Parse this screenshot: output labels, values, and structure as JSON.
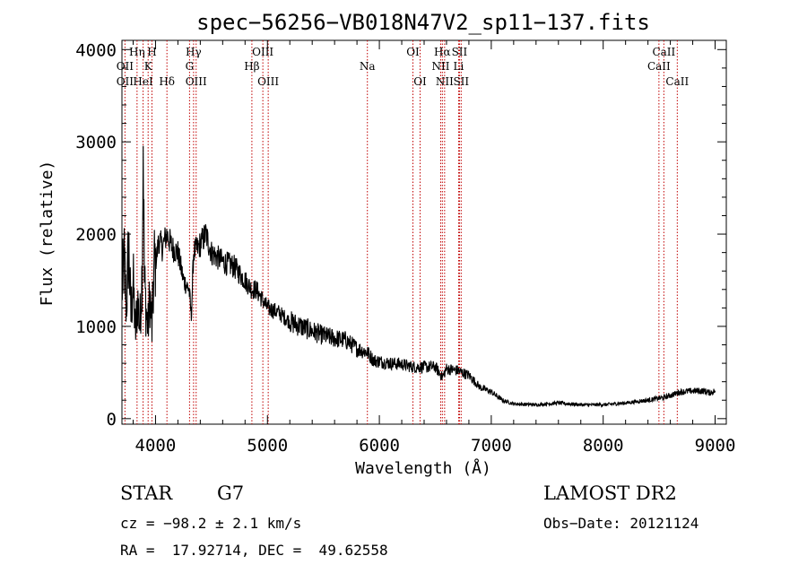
{
  "chart_data": {
    "type": "line",
    "title": "spec−56256−VB018N47V2_sp11−137.fits",
    "xlabel": "Wavelength (Å)",
    "ylabel": "Flux (relative)",
    "xlim": [
      3700,
      9100
    ],
    "ylim": [
      -60,
      4100
    ],
    "xticks": [
      4000,
      5000,
      6000,
      7000,
      8000,
      9000
    ],
    "yticks": [
      0,
      1000,
      2000,
      3000,
      4000
    ],
    "grid": false,
    "series": [
      {
        "name": "spectrum",
        "x": [
          3700,
          3720,
          3740,
          3760,
          3780,
          3800,
          3820,
          3840,
          3860,
          3880,
          3890,
          3900,
          3920,
          3934,
          3950,
          3968,
          3990,
          4010,
          4030,
          4060,
          4100,
          4150,
          4200,
          4250,
          4300,
          4320,
          4340,
          4380,
          4450,
          4500,
          4600,
          4700,
          4800,
          4861,
          4900,
          5000,
          5100,
          5200,
          5300,
          5400,
          5500,
          5600,
          5700,
          5800,
          5890,
          5950,
          6000,
          6100,
          6200,
          6300,
          6400,
          6500,
          6563,
          6600,
          6700,
          6800,
          6900,
          7000,
          7100,
          7200,
          7400,
          7600,
          7800,
          8000,
          8200,
          8400,
          8542,
          8600,
          8662,
          8700,
          8800,
          8900,
          8950,
          9000
        ],
        "values": [
          1400,
          1700,
          1200,
          1900,
          1100,
          1500,
          900,
          1300,
          1000,
          1600,
          3100,
          1500,
          1100,
          1000,
          1350,
          950,
          1700,
          1750,
          1950,
          1850,
          2000,
          1850,
          1800,
          1500,
          1400,
          1100,
          1800,
          1850,
          2000,
          1800,
          1700,
          1650,
          1500,
          1400,
          1400,
          1200,
          1150,
          1050,
          1000,
          950,
          900,
          870,
          850,
          760,
          720,
          630,
          620,
          600,
          590,
          560,
          560,
          560,
          450,
          540,
          520,
          470,
          340,
          290,
          200,
          160,
          150,
          170,
          150,
          150,
          170,
          200,
          230,
          250,
          280,
          290,
          300,
          300,
          280,
          300
        ]
      }
    ],
    "lines": [
      {
        "wl": 3727,
        "labels": [
          {
            "text": "OII",
            "row": 2
          },
          {
            "text": "OII",
            "row": 3
          }
        ]
      },
      {
        "wl": 3835,
        "labels": [
          {
            "text": "Hη",
            "row": 1
          }
        ]
      },
      {
        "wl": 3889,
        "labels": [
          {
            "text": "HeI",
            "row": 3
          }
        ]
      },
      {
        "wl": 3934,
        "labels": [
          {
            "text": "K",
            "row": 2
          }
        ]
      },
      {
        "wl": 3968,
        "labels": [
          {
            "text": "H",
            "row": 1
          }
        ]
      },
      {
        "wl": 4102,
        "labels": [
          {
            "text": "Hδ",
            "row": 3
          }
        ]
      },
      {
        "wl": 4304,
        "labels": [
          {
            "text": "G",
            "row": 2
          }
        ]
      },
      {
        "wl": 4340,
        "labels": [
          {
            "text": "Hγ",
            "row": 1
          }
        ]
      },
      {
        "wl": 4363,
        "labels": [
          {
            "text": "OIII",
            "row": 3
          }
        ]
      },
      {
        "wl": 4861,
        "labels": [
          {
            "text": "Hβ",
            "row": 2
          }
        ]
      },
      {
        "wl": 4959,
        "labels": [
          {
            "text": "OIII",
            "row": 1
          }
        ]
      },
      {
        "wl": 5007,
        "labels": [
          {
            "text": "OIII",
            "row": 3
          }
        ]
      },
      {
        "wl": 5893,
        "labels": [
          {
            "text": "Na",
            "row": 2
          }
        ]
      },
      {
        "wl": 6300,
        "labels": [
          {
            "text": "OI",
            "row": 1
          }
        ]
      },
      {
        "wl": 6364,
        "labels": [
          {
            "text": "OI",
            "row": 3
          }
        ]
      },
      {
        "wl": 6548,
        "labels": [
          {
            "text": "NII",
            "row": 2
          }
        ]
      },
      {
        "wl": 6563,
        "labels": [
          {
            "text": "Hα",
            "row": 1
          }
        ]
      },
      {
        "wl": 6583,
        "labels": [
          {
            "text": "NII",
            "row": 3
          }
        ]
      },
      {
        "wl": 6708,
        "labels": [
          {
            "text": "Li",
            "row": 2
          }
        ]
      },
      {
        "wl": 6716,
        "labels": [
          {
            "text": "SII",
            "row": 1
          }
        ]
      },
      {
        "wl": 6731,
        "labels": [
          {
            "text": "SII",
            "row": 3
          }
        ]
      },
      {
        "wl": 8498,
        "labels": [
          {
            "text": "CaII",
            "row": 2
          }
        ]
      },
      {
        "wl": 8542,
        "labels": [
          {
            "text": "CaII",
            "row": 1
          }
        ]
      },
      {
        "wl": 8662,
        "labels": [
          {
            "text": "CaII",
            "row": 3
          }
        ]
      }
    ],
    "line_color": "#c00000",
    "spectrum_color": "#000000"
  },
  "info": {
    "class": "STAR",
    "subclass": "G7",
    "redshift": "cz = −98.2 ± 2.1 km/s",
    "coords": "RA =  17.92714, DEC =  49.62558",
    "survey": "LAMOST DR2",
    "obs_date": "Obs−Date: 20121124"
  }
}
